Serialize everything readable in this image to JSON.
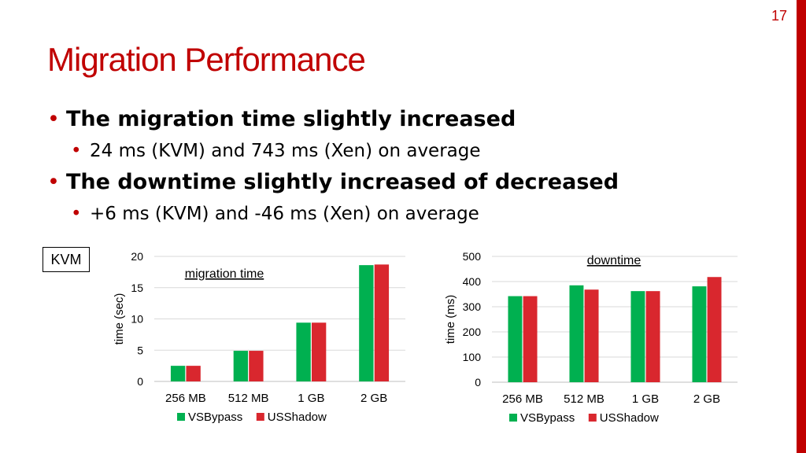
{
  "slide": {
    "number": "17",
    "title": "Migration Performance",
    "bullets": [
      {
        "level": 1,
        "text": "The migration time slightly increased"
      },
      {
        "level": 2,
        "text": "24 ms (KVM) and 743 ms (Xen) on average"
      },
      {
        "level": 1,
        "text": "The downtime slightly increased of decreased"
      },
      {
        "level": 2,
        "text": "+6 ms (KVM) and -46 ms (Xen) on average"
      }
    ],
    "tag": "KVM",
    "accent_color": "#c00000"
  },
  "chart_data": [
    {
      "type": "bar",
      "annotation": "migration time",
      "ylabel": "time (sec)",
      "categories": [
        "256 MB",
        "512 MB",
        "1 GB",
        "2 GB"
      ],
      "ylim": [
        0,
        20
      ],
      "yticks": [
        0,
        5,
        10,
        15,
        20
      ],
      "grid": true,
      "legend_position": "bottom",
      "series": [
        {
          "name": "VSBypass",
          "color": "#00b050",
          "values": [
            2.5,
            4.9,
            9.4,
            18.6
          ]
        },
        {
          "name": "USShadow",
          "color": "#d9272e",
          "values": [
            2.5,
            4.9,
            9.4,
            18.7
          ]
        }
      ]
    },
    {
      "type": "bar",
      "annotation": "downtime",
      "ylabel": "time (ms)",
      "categories": [
        "256 MB",
        "512 MB",
        "1 GB",
        "2 GB"
      ],
      "ylim": [
        0,
        500
      ],
      "yticks": [
        0,
        100,
        200,
        300,
        400,
        500
      ],
      "grid": true,
      "legend_position": "bottom",
      "series": [
        {
          "name": "VSBypass",
          "color": "#00b050",
          "values": [
            342,
            385,
            362,
            381
          ]
        },
        {
          "name": "USShadow",
          "color": "#d9272e",
          "values": [
            342,
            368,
            362,
            418
          ]
        }
      ]
    }
  ]
}
